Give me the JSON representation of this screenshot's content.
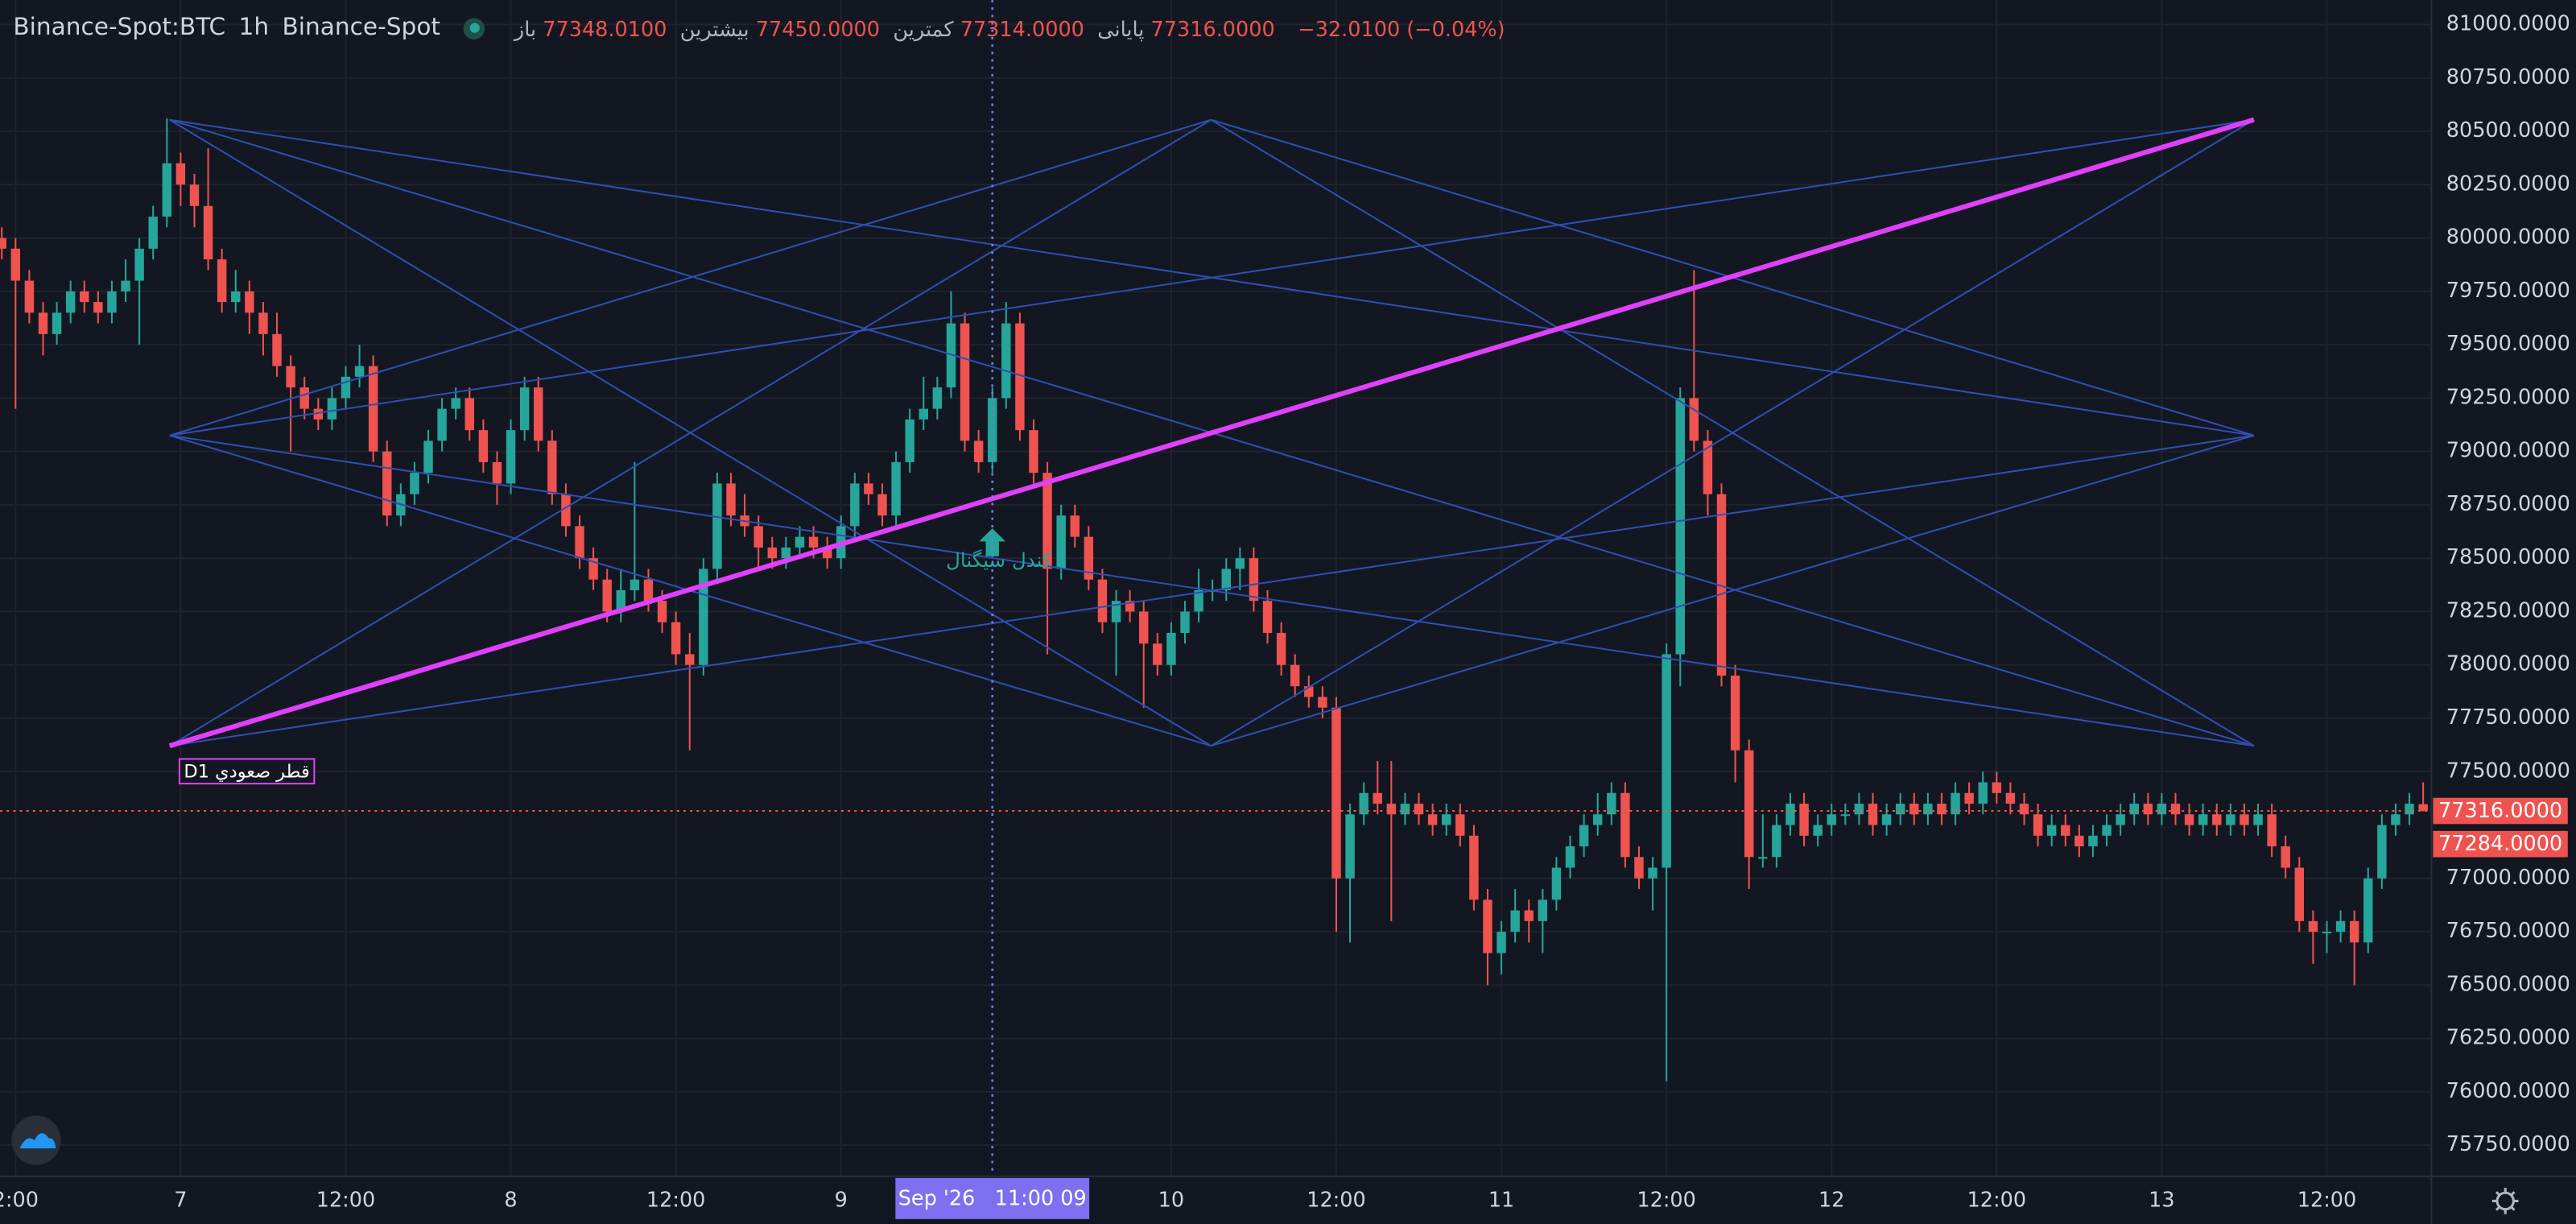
{
  "header": {
    "symbol": "Binance-Spot:BTC",
    "interval": "1h",
    "exchange": "Binance-Spot",
    "ohlc": [
      {
        "name": "باز",
        "text": "77348.0100"
      },
      {
        "name": "بیشترین",
        "text": "77450.0000"
      },
      {
        "name": "کمترین",
        "text": "77314.0000"
      },
      {
        "name": "پایانی",
        "text": "77316.0000"
      }
    ],
    "change": "−32.0100 (−0.04%)"
  },
  "chart_data": {
    "type": "candlestick",
    "up_color": "#26a69a",
    "down_color": "#ef5350",
    "xlim": [
      -0.13,
      176.6
    ],
    "ylim": [
      75604,
      81115
    ],
    "grid": true,
    "xticks": [
      {
        "value": 1,
        "label": "2:00"
      },
      {
        "value": 13,
        "label": "7"
      },
      {
        "value": 25,
        "label": "12:00"
      },
      {
        "value": 37,
        "label": "8"
      },
      {
        "value": 49,
        "label": "12:00"
      },
      {
        "value": 61,
        "label": "9"
      },
      {
        "value": 85,
        "label": "10"
      },
      {
        "value": 97,
        "label": "12:00"
      },
      {
        "value": 109,
        "label": "11"
      },
      {
        "value": 121,
        "label": "12:00"
      },
      {
        "value": 133,
        "label": "12"
      },
      {
        "value": 145,
        "label": "12:00"
      },
      {
        "value": 157,
        "label": "13"
      },
      {
        "value": 169,
        "label": "12:00"
      }
    ],
    "yticks": [
      {
        "value": 81000,
        "label": "81000.0000"
      },
      {
        "value": 80750,
        "label": "80750.0000"
      },
      {
        "value": 80500,
        "label": "80500.0000"
      },
      {
        "value": 80250,
        "label": "80250.0000"
      },
      {
        "value": 80000,
        "label": "80000.0000"
      },
      {
        "value": 79750,
        "label": "79750.0000"
      },
      {
        "value": 79500,
        "label": "79500.0000"
      },
      {
        "value": 79250,
        "label": "79250.0000"
      },
      {
        "value": 79000,
        "label": "79000.0000"
      },
      {
        "value": 78750,
        "label": "78750.0000"
      },
      {
        "value": 78500,
        "label": "78500.0000"
      },
      {
        "value": 78250,
        "label": "78250.0000"
      },
      {
        "value": 78000,
        "label": "78000.0000"
      },
      {
        "value": 77750,
        "label": "77750.0000"
      },
      {
        "value": 77500,
        "label": "77500.0000"
      },
      {
        "value": 77000,
        "label": "77000.0000"
      },
      {
        "value": 76750,
        "label": "76750.0000"
      },
      {
        "value": 76500,
        "label": "76500.0000"
      },
      {
        "value": 76250,
        "label": "76250.0000"
      },
      {
        "value": 76000,
        "label": "76000.0000"
      },
      {
        "value": 75750,
        "label": "75750.0000"
      }
    ],
    "price_labels": [
      {
        "value": 77316,
        "label": "77316.0000"
      },
      {
        "value": 77284,
        "label": "77284.0000"
      }
    ],
    "crosshair": {
      "value": 72,
      "label": "Sep '26   11:00 09"
    },
    "signal": {
      "x": 72,
      "price": 78640,
      "label": "كندل سيگنال",
      "color": "#26a69a"
    },
    "drawings": {
      "color": "#2f4fb0",
      "points": [
        [
          12.2,
          80554
        ],
        [
          12.2,
          79075
        ],
        [
          12.2,
          77621
        ],
        [
          87.9,
          80554
        ],
        [
          87.9,
          77621
        ],
        [
          163.7,
          80554
        ],
        [
          163.7,
          79075
        ],
        [
          163.7,
          77621
        ]
      ],
      "segments": [
        [
          0,
          4
        ],
        [
          0,
          6
        ],
        [
          0,
          7
        ],
        [
          1,
          3
        ],
        [
          1,
          4
        ],
        [
          1,
          5
        ],
        [
          1,
          7
        ],
        [
          2,
          3
        ],
        [
          2,
          6
        ],
        [
          3,
          7
        ],
        [
          4,
          5
        ],
        [
          3,
          6
        ],
        [
          4,
          6
        ]
      ],
      "trend": {
        "from": 2,
        "to": 5,
        "color": "#e040fb",
        "label": "قطر صعودي D1"
      }
    },
    "candles": [
      [
        80000,
        80050,
        79900,
        79950
      ],
      [
        79950,
        80000,
        79200,
        79800
      ],
      [
        79800,
        79850,
        79600,
        79650
      ],
      [
        79650,
        79700,
        79450,
        79550
      ],
      [
        79550,
        79700,
        79500,
        79650
      ],
      [
        79650,
        79800,
        79600,
        79750
      ],
      [
        79750,
        79800,
        79650,
        79700
      ],
      [
        79700,
        79750,
        79600,
        79650
      ],
      [
        79650,
        79800,
        79600,
        79750
      ],
      [
        79750,
        79900,
        79700,
        79800
      ],
      [
        79800,
        80000,
        79500,
        79950
      ],
      [
        79950,
        80150,
        79900,
        80100
      ],
      [
        80100,
        80560,
        80050,
        80350
      ],
      [
        80350,
        80400,
        80150,
        80250
      ],
      [
        80250,
        80300,
        80050,
        80150
      ],
      [
        80150,
        80420,
        79850,
        79900
      ],
      [
        79900,
        79950,
        79650,
        79700
      ],
      [
        79700,
        79850,
        79650,
        79750
      ],
      [
        79750,
        79800,
        79550,
        79650
      ],
      [
        79650,
        79700,
        79450,
        79550
      ],
      [
        79550,
        79650,
        79350,
        79400
      ],
      [
        79400,
        79450,
        79000,
        79300
      ],
      [
        79300,
        79350,
        79150,
        79200
      ],
      [
        79200,
        79250,
        79100,
        79150
      ],
      [
        79150,
        79300,
        79100,
        79250
      ],
      [
        79250,
        79400,
        79200,
        79350
      ],
      [
        79350,
        79500,
        79300,
        79400
      ],
      [
        79400,
        79450,
        78950,
        79000
      ],
      [
        79000,
        79050,
        78650,
        78700
      ],
      [
        78700,
        78850,
        78650,
        78800
      ],
      [
        78800,
        78950,
        78750,
        78900
      ],
      [
        78900,
        79100,
        78850,
        79050
      ],
      [
        79050,
        79250,
        79000,
        79200
      ],
      [
        79200,
        79300,
        79150,
        79250
      ],
      [
        79250,
        79300,
        79050,
        79100
      ],
      [
        79100,
        79150,
        78900,
        78950
      ],
      [
        78950,
        79000,
        78750,
        78850
      ],
      [
        78850,
        79150,
        78800,
        79100
      ],
      [
        79100,
        79350,
        79050,
        79300
      ],
      [
        79300,
        79350,
        79000,
        79050
      ],
      [
        79050,
        79100,
        78750,
        78800
      ],
      [
        78800,
        78850,
        78600,
        78650
      ],
      [
        78650,
        78700,
        78450,
        78500
      ],
      [
        78500,
        78550,
        78350,
        78400
      ],
      [
        78400,
        78450,
        78200,
        78250
      ],
      [
        78250,
        78450,
        78200,
        78350
      ],
      [
        78350,
        78950,
        78300,
        78400
      ],
      [
        78400,
        78450,
        78250,
        78300
      ],
      [
        78300,
        78350,
        78150,
        78200
      ],
      [
        78200,
        78250,
        78000,
        78050
      ],
      [
        78050,
        78150,
        77600,
        78000
      ],
      [
        78000,
        78500,
        77950,
        78450
      ],
      [
        78450,
        78900,
        78400,
        78850
      ],
      [
        78850,
        78900,
        78650,
        78700
      ],
      [
        78700,
        78800,
        78600,
        78650
      ],
      [
        78650,
        78700,
        78450,
        78550
      ],
      [
        78550,
        78600,
        78450,
        78500
      ],
      [
        78500,
        78600,
        78450,
        78550
      ],
      [
        78550,
        78650,
        78500,
        78600
      ],
      [
        78600,
        78650,
        78500,
        78550
      ],
      [
        78550,
        78600,
        78450,
        78500
      ],
      [
        78500,
        78700,
        78450,
        78650
      ],
      [
        78650,
        78900,
        78600,
        78850
      ],
      [
        78850,
        78900,
        78750,
        78800
      ],
      [
        78800,
        78850,
        78650,
        78700
      ],
      [
        78700,
        79000,
        78650,
        78950
      ],
      [
        78950,
        79200,
        78900,
        79150
      ],
      [
        79150,
        79350,
        79100,
        79200
      ],
      [
        79200,
        79350,
        79150,
        79300
      ],
      [
        79300,
        79750,
        79250,
        79600
      ],
      [
        79600,
        79650,
        79000,
        79050
      ],
      [
        79050,
        79100,
        78900,
        78950
      ],
      [
        78950,
        79300,
        78900,
        79250
      ],
      [
        79250,
        79700,
        79200,
        79600
      ],
      [
        79600,
        79650,
        79050,
        79100
      ],
      [
        79100,
        79150,
        78850,
        78900
      ],
      [
        78900,
        78950,
        78050,
        78450
      ],
      [
        78450,
        78750,
        78400,
        78700
      ],
      [
        78700,
        78750,
        78550,
        78600
      ],
      [
        78600,
        78650,
        78350,
        78400
      ],
      [
        78400,
        78450,
        78150,
        78200
      ],
      [
        78200,
        78350,
        77950,
        78300
      ],
      [
        78300,
        78350,
        78200,
        78250
      ],
      [
        78250,
        78300,
        77800,
        78100
      ],
      [
        78100,
        78150,
        77950,
        78000
      ],
      [
        78000,
        78200,
        77950,
        78150
      ],
      [
        78150,
        78300,
        78100,
        78250
      ],
      [
        78250,
        78450,
        78200,
        78350
      ],
      [
        78350,
        78400,
        78300,
        78350
      ],
      [
        78350,
        78500,
        78300,
        78450
      ],
      [
        78450,
        78550,
        78350,
        78500
      ],
      [
        78500,
        78550,
        78250,
        78300
      ],
      [
        78300,
        78350,
        78100,
        78150
      ],
      [
        78150,
        78200,
        77950,
        78000
      ],
      [
        78000,
        78050,
        77850,
        77900
      ],
      [
        77900,
        77950,
        77800,
        77850
      ],
      [
        77850,
        77900,
        77750,
        77800
      ],
      [
        77800,
        77850,
        76750,
        77000
      ],
      [
        77000,
        77350,
        76700,
        77300
      ],
      [
        77300,
        77450,
        77250,
        77400
      ],
      [
        77400,
        77550,
        77300,
        77350
      ],
      [
        77350,
        77550,
        76800,
        77300
      ],
      [
        77300,
        77400,
        77250,
        77350
      ],
      [
        77350,
        77400,
        77250,
        77300
      ],
      [
        77300,
        77350,
        77200,
        77250
      ],
      [
        77250,
        77350,
        77200,
        77300
      ],
      [
        77300,
        77350,
        77150,
        77200
      ],
      [
        77200,
        77250,
        76850,
        76900
      ],
      [
        76900,
        76950,
        76500,
        76650
      ],
      [
        76650,
        76800,
        76550,
        76750
      ],
      [
        76750,
        76950,
        76700,
        76850
      ],
      [
        76850,
        76900,
        76700,
        76800
      ],
      [
        76800,
        76950,
        76650,
        76900
      ],
      [
        76900,
        77100,
        76850,
        77050
      ],
      [
        77050,
        77200,
        77000,
        77150
      ],
      [
        77150,
        77300,
        77100,
        77250
      ],
      [
        77250,
        77400,
        77200,
        77300
      ],
      [
        77300,
        77450,
        77250,
        77400
      ],
      [
        77400,
        77450,
        77050,
        77100
      ],
      [
        77100,
        77150,
        76950,
        77000
      ],
      [
        77000,
        77100,
        76850,
        77050
      ],
      [
        77050,
        78100,
        76050,
        78050
      ],
      [
        78050,
        79300,
        77900,
        79250
      ],
      [
        79250,
        79850,
        79000,
        79050
      ],
      [
        79050,
        79100,
        78700,
        78800
      ],
      [
        78800,
        78850,
        77900,
        77950
      ],
      [
        77950,
        78000,
        77450,
        77600
      ],
      [
        77600,
        77650,
        76950,
        77100
      ],
      [
        77100,
        77300,
        77050,
        77100
      ],
      [
        77100,
        77300,
        77050,
        77250
      ],
      [
        77250,
        77400,
        77200,
        77350
      ],
      [
        77350,
        77400,
        77150,
        77200
      ],
      [
        77200,
        77300,
        77150,
        77250
      ],
      [
        77250,
        77350,
        77200,
        77300
      ],
      [
        77300,
        77350,
        77250,
        77300
      ],
      [
        77300,
        77400,
        77250,
        77350
      ],
      [
        77350,
        77400,
        77200,
        77250
      ],
      [
        77250,
        77350,
        77200,
        77300
      ],
      [
        77300,
        77400,
        77250,
        77350
      ],
      [
        77350,
        77400,
        77250,
        77300
      ],
      [
        77300,
        77400,
        77250,
        77350
      ],
      [
        77350,
        77400,
        77250,
        77300
      ],
      [
        77300,
        77450,
        77250,
        77400
      ],
      [
        77400,
        77450,
        77300,
        77350
      ],
      [
        77350,
        77500,
        77300,
        77450
      ],
      [
        77450,
        77500,
        77350,
        77400
      ],
      [
        77400,
        77450,
        77300,
        77350
      ],
      [
        77350,
        77400,
        77250,
        77300
      ],
      [
        77300,
        77350,
        77150,
        77200
      ],
      [
        77200,
        77300,
        77150,
        77250
      ],
      [
        77250,
        77300,
        77150,
        77200
      ],
      [
        77200,
        77250,
        77100,
        77150
      ],
      [
        77150,
        77250,
        77100,
        77200
      ],
      [
        77200,
        77300,
        77150,
        77250
      ],
      [
        77250,
        77350,
        77200,
        77300
      ],
      [
        77300,
        77400,
        77250,
        77350
      ],
      [
        77350,
        77400,
        77250,
        77300
      ],
      [
        77300,
        77400,
        77250,
        77350
      ],
      [
        77350,
        77400,
        77250,
        77300
      ],
      [
        77300,
        77350,
        77200,
        77250
      ],
      [
        77250,
        77350,
        77200,
        77300
      ],
      [
        77300,
        77350,
        77200,
        77250
      ],
      [
        77250,
        77350,
        77200,
        77300
      ],
      [
        77300,
        77350,
        77200,
        77250
      ],
      [
        77250,
        77350,
        77200,
        77300
      ],
      [
        77300,
        77350,
        77100,
        77150
      ],
      [
        77150,
        77200,
        77000,
        77050
      ],
      [
        77050,
        77100,
        76750,
        76800
      ],
      [
        76800,
        76850,
        76600,
        76750
      ],
      [
        76750,
        76800,
        76650,
        76750
      ],
      [
        76750,
        76850,
        76700,
        76800
      ],
      [
        76800,
        76850,
        76500,
        76700
      ],
      [
        76700,
        77050,
        76650,
        77000
      ],
      [
        77000,
        77300,
        76950,
        77250
      ],
      [
        77250,
        77350,
        77200,
        77300
      ],
      [
        77300,
        77400,
        77250,
        77350
      ],
      [
        77348.01,
        77450,
        77314,
        77316
      ]
    ]
  }
}
